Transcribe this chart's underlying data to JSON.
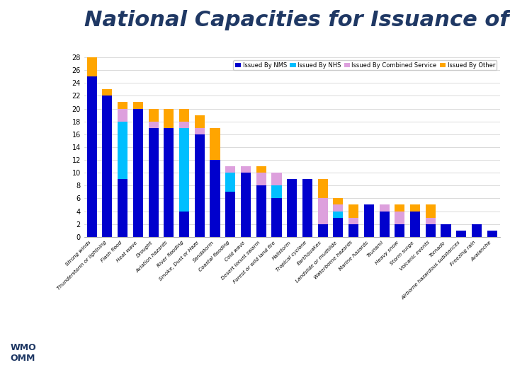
{
  "title": "National Capacities for Issuance of Warnings",
  "title_fontsize": 22,
  "title_color": "#1F3864",
  "categories": [
    "Strong winds",
    "Thunderstorm or lightning",
    "Flash flood",
    "Heat wave",
    "Drought",
    "Aviation hazards",
    "River flooding",
    "Smoke, Dust or Haze",
    "Sandstorm",
    "Coastal flooding",
    "Cold wave",
    "Desert locust swarm",
    "Forest or wild land fire",
    "Hailstorm",
    "Tropical cyclone",
    "Earthquakes",
    "Landslide or mudslide",
    "Waterborne hazards",
    "Marine hazards",
    "Tsunami",
    "Heavy snow",
    "Storm surge",
    "Volcanic events",
    "Tornado",
    "Airborne hazardous substances",
    "Freezing rain",
    "Avalanche"
  ],
  "nms": [
    25,
    22,
    9,
    20,
    17,
    17,
    4,
    16,
    12,
    7,
    10,
    8,
    6,
    9,
    9,
    2,
    3,
    2,
    5,
    4,
    2,
    4,
    2,
    2,
    1,
    2,
    1
  ],
  "nhs": [
    0,
    0,
    9,
    0,
    0,
    0,
    13,
    0,
    0,
    3,
    0,
    0,
    2,
    0,
    0,
    0,
    1,
    0,
    0,
    0,
    0,
    0,
    0,
    0,
    0,
    0,
    0
  ],
  "combined": [
    0,
    0,
    2,
    0,
    1,
    0,
    1,
    1,
    0,
    1,
    1,
    2,
    2,
    0,
    0,
    4,
    1,
    1,
    0,
    1,
    2,
    0,
    1,
    0,
    0,
    0,
    0
  ],
  "other": [
    3,
    1,
    1,
    1,
    2,
    3,
    2,
    2,
    5,
    0,
    0,
    1,
    0,
    0,
    0,
    3,
    1,
    2,
    0,
    0,
    1,
    1,
    2,
    0,
    0,
    0,
    0
  ],
  "color_nms": "#0000CD",
  "color_nhs": "#00BFFF",
  "color_combined": "#DDA0DD",
  "color_other": "#FFA500",
  "legend_labels": [
    "Issued By NMS",
    "Issued By NHS",
    "Issued By Combined Service",
    "Issued By Other"
  ],
  "ylim": [
    0,
    28
  ],
  "yticks": [
    0,
    2,
    4,
    6,
    8,
    10,
    12,
    14,
    16,
    18,
    20,
    22,
    24,
    26,
    28
  ],
  "chart_bg": "#FFFFFF",
  "left_panel_color": "#4DBFEF",
  "fig_bg": "#FFFFFF",
  "bar_width": 0.65
}
